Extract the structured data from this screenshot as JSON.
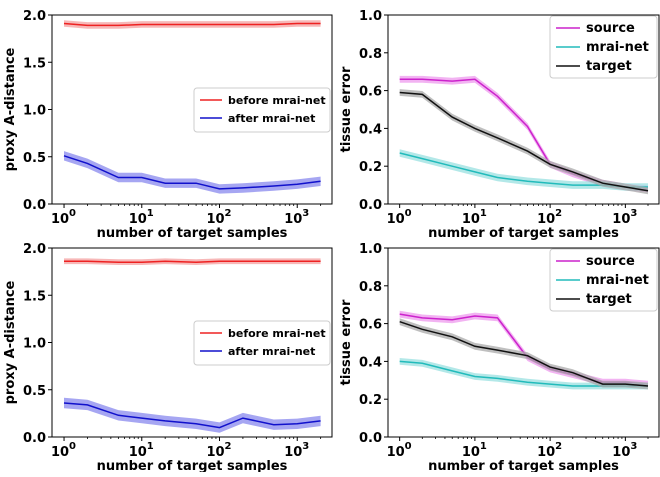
{
  "chart_data": [
    {
      "type": "line",
      "xscale": "log",
      "xlabel": "number of target samples",
      "ylabel": "proxy A-distance",
      "xlim": [
        0.7,
        2800
      ],
      "ylim": [
        0,
        2.0
      ],
      "yticks": [
        "0.0",
        "0.5",
        "1.0",
        "1.5",
        "2.0"
      ],
      "legend_loc": "center-right",
      "series": [
        {
          "name": "before mrai-net",
          "color": "#ee2222",
          "band_color": "#f4a0a0",
          "band": 0.035,
          "x": [
            1,
            2,
            5,
            10,
            20,
            50,
            100,
            200,
            500,
            1000,
            2000
          ],
          "y": [
            1.91,
            1.89,
            1.89,
            1.9,
            1.9,
            1.9,
            1.9,
            1.9,
            1.9,
            1.91,
            1.91
          ]
        },
        {
          "name": "after mrai-net",
          "color": "#1111cc",
          "band_color": "#8888ee",
          "band": 0.05,
          "x": [
            1,
            2,
            5,
            10,
            20,
            50,
            100,
            200,
            500,
            1000,
            2000
          ],
          "y": [
            0.51,
            0.43,
            0.28,
            0.28,
            0.22,
            0.22,
            0.16,
            0.17,
            0.19,
            0.21,
            0.24
          ]
        }
      ]
    },
    {
      "type": "line",
      "xscale": "log",
      "xlabel": "number of target samples",
      "ylabel": "tissue error",
      "xlim": [
        0.7,
        2800
      ],
      "ylim": [
        0,
        1.0
      ],
      "yticks": [
        "0.0",
        "0.2",
        "0.4",
        "0.6",
        "0.8",
        "1.0"
      ],
      "legend_loc": "top-right",
      "series": [
        {
          "name": "source",
          "color": "#cc22cc",
          "band_color": "#ee99ee",
          "band": 0.018,
          "x": [
            1,
            2,
            5,
            10,
            20,
            50,
            100,
            200,
            500,
            1000,
            2000
          ],
          "y": [
            0.66,
            0.66,
            0.65,
            0.66,
            0.57,
            0.41,
            0.21,
            0.16,
            0.11,
            0.09,
            0.08
          ]
        },
        {
          "name": "mrai-net",
          "color": "#22bbbb",
          "band_color": "#99e0e0",
          "band": 0.02,
          "x": [
            1,
            2,
            5,
            10,
            20,
            50,
            100,
            200,
            500,
            1000,
            2000
          ],
          "y": [
            0.27,
            0.24,
            0.2,
            0.17,
            0.14,
            0.12,
            0.11,
            0.1,
            0.1,
            0.09,
            0.09
          ]
        },
        {
          "name": "target",
          "color": "#111111",
          "band_color": "#aaaaaa",
          "band": 0.018,
          "x": [
            1,
            2,
            5,
            10,
            20,
            50,
            100,
            200,
            500,
            1000,
            2000
          ],
          "y": [
            0.59,
            0.58,
            0.46,
            0.4,
            0.35,
            0.28,
            0.21,
            0.17,
            0.11,
            0.09,
            0.07
          ]
        }
      ]
    },
    {
      "type": "line",
      "xscale": "log",
      "xlabel": "number of target samples",
      "ylabel": "proxy A-distance",
      "xlim": [
        0.7,
        2800
      ],
      "ylim": [
        0,
        2.0
      ],
      "yticks": [
        "0.0",
        "0.5",
        "1.0",
        "1.5",
        "2.0"
      ],
      "legend_loc": "center-right",
      "series": [
        {
          "name": "before mrai-net",
          "color": "#ee2222",
          "band_color": "#f4a0a0",
          "band": 0.03,
          "x": [
            1,
            2,
            5,
            10,
            20,
            50,
            100,
            200,
            500,
            1000,
            2000
          ],
          "y": [
            1.86,
            1.86,
            1.85,
            1.85,
            1.86,
            1.85,
            1.86,
            1.86,
            1.86,
            1.86,
            1.86
          ]
        },
        {
          "name": "after mrai-net",
          "color": "#1111cc",
          "band_color": "#8888ee",
          "band": 0.055,
          "x": [
            1,
            2,
            5,
            10,
            20,
            50,
            100,
            200,
            500,
            1000,
            2000
          ],
          "y": [
            0.36,
            0.34,
            0.23,
            0.2,
            0.17,
            0.14,
            0.1,
            0.2,
            0.13,
            0.14,
            0.17
          ]
        }
      ]
    },
    {
      "type": "line",
      "xscale": "log",
      "xlabel": "number of target samples",
      "ylabel": "tissue error",
      "xlim": [
        0.7,
        2800
      ],
      "ylim": [
        0,
        1.0
      ],
      "yticks": [
        "0.0",
        "0.2",
        "0.4",
        "0.6",
        "0.8",
        "1.0"
      ],
      "legend_loc": "top-right",
      "series": [
        {
          "name": "source",
          "color": "#cc22cc",
          "band_color": "#ee99ee",
          "band": 0.018,
          "x": [
            1,
            2,
            5,
            10,
            20,
            50,
            100,
            200,
            500,
            1000,
            2000
          ],
          "y": [
            0.65,
            0.63,
            0.62,
            0.64,
            0.63,
            0.42,
            0.36,
            0.33,
            0.29,
            0.29,
            0.28
          ]
        },
        {
          "name": "mrai-net",
          "color": "#22bbbb",
          "band_color": "#99e0e0",
          "band": 0.018,
          "x": [
            1,
            2,
            5,
            10,
            20,
            50,
            100,
            200,
            500,
            1000,
            2000
          ],
          "y": [
            0.4,
            0.39,
            0.35,
            0.32,
            0.31,
            0.29,
            0.28,
            0.27,
            0.27,
            0.27,
            0.27
          ]
        },
        {
          "name": "target",
          "color": "#111111",
          "band_color": "#aaaaaa",
          "band": 0.018,
          "x": [
            1,
            2,
            5,
            10,
            20,
            50,
            100,
            200,
            500,
            1000,
            2000
          ],
          "y": [
            0.61,
            0.57,
            0.53,
            0.48,
            0.46,
            0.43,
            0.37,
            0.34,
            0.28,
            0.28,
            0.27
          ]
        }
      ]
    }
  ]
}
